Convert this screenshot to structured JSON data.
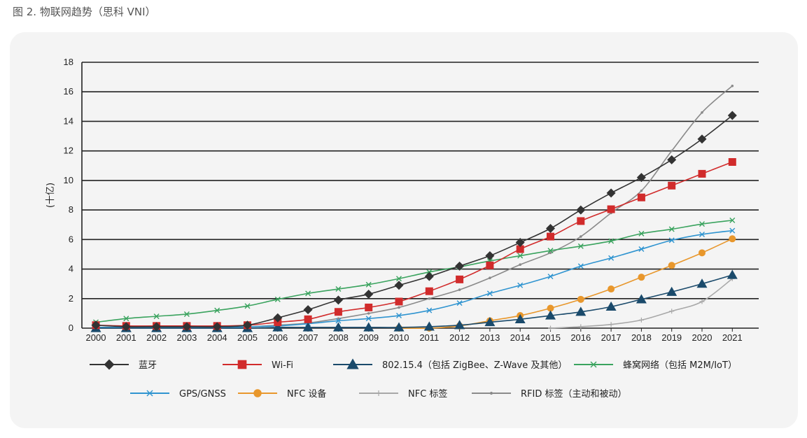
{
  "caption": "图 2. 物联网趋势（思科 VNI）",
  "colors": {
    "panel": "#f4f4f4",
    "grid": "#222222"
  },
  "chart_data": {
    "type": "line",
    "title": "",
    "xlabel": "",
    "ylabel": "(十亿)",
    "ylim": [
      0,
      18
    ],
    "yticks": [
      0,
      2,
      4,
      6,
      8,
      10,
      12,
      14,
      16,
      18
    ],
    "grid": true,
    "legend_position": "bottom",
    "categories": [
      "2000",
      "2001",
      "2002",
      "2003",
      "2004",
      "2005",
      "2006",
      "2007",
      "2008",
      "2009",
      "2010",
      "2011",
      "2012",
      "2013",
      "2014",
      "2015",
      "2016",
      "2017",
      "2018",
      "2019",
      "2020",
      "2021"
    ],
    "series": [
      {
        "name": "蓝牙",
        "color": "#333333",
        "marker": "diamond",
        "values": [
          0.2,
          0.1,
          0.1,
          0.1,
          0.1,
          0.2,
          0.7,
          1.25,
          1.9,
          2.3,
          2.9,
          3.5,
          4.2,
          4.9,
          5.8,
          6.75,
          8.0,
          9.15,
          10.2,
          11.4,
          12.8,
          14.4
        ]
      },
      {
        "name": "Wi-Fi",
        "color": "#d12b2b",
        "marker": "square",
        "values": [
          0.2,
          0.15,
          0.15,
          0.15,
          0.15,
          0.2,
          0.4,
          0.6,
          1.1,
          1.4,
          1.8,
          2.5,
          3.3,
          4.25,
          5.35,
          6.2,
          7.25,
          8.05,
          8.85,
          9.65,
          10.45,
          11.25
        ]
      },
      {
        "name": "802.15.4（包括 ZigBee、Z-Wave 及其他）",
        "color": "#1a4a6b",
        "marker": "triangle",
        "values": [
          0.0,
          0.0,
          0.0,
          0.0,
          0.0,
          0.0,
          0.05,
          0.05,
          0.05,
          0.05,
          0.05,
          0.1,
          0.2,
          0.4,
          0.6,
          0.85,
          1.1,
          1.45,
          1.95,
          2.45,
          3.0,
          3.6
        ]
      },
      {
        "name": "蜂窝网络（包括 M2M/IoT）",
        "color": "#3aa35e",
        "marker": "x",
        "values": [
          0.4,
          0.65,
          0.8,
          0.95,
          1.2,
          1.5,
          1.95,
          2.35,
          2.65,
          2.95,
          3.35,
          3.8,
          4.15,
          4.55,
          4.9,
          5.25,
          5.55,
          5.9,
          6.4,
          6.7,
          7.05,
          7.3
        ]
      },
      {
        "name": "GPS/GNSS",
        "color": "#2f94d0",
        "marker": "x",
        "values": [
          0.05,
          0.05,
          0.05,
          0.05,
          0.05,
          0.1,
          0.15,
          0.3,
          0.5,
          0.65,
          0.85,
          1.2,
          1.7,
          2.35,
          2.9,
          3.5,
          4.2,
          4.75,
          5.35,
          5.95,
          6.35,
          6.6
        ]
      },
      {
        "name": "NFC 设备",
        "color": "#e8972c",
        "marker": "circle",
        "values": [
          null,
          null,
          null,
          null,
          null,
          null,
          null,
          null,
          null,
          null,
          0.0,
          0.0,
          0.15,
          0.5,
          0.85,
          1.35,
          1.95,
          2.65,
          3.45,
          4.25,
          5.1,
          6.05
        ]
      },
      {
        "name": "NFC 标签",
        "color": "#a8a8a8",
        "marker": "plus",
        "values": [
          null,
          null,
          null,
          null,
          null,
          null,
          null,
          null,
          null,
          null,
          null,
          null,
          null,
          null,
          null,
          0.0,
          0.1,
          0.25,
          0.55,
          1.15,
          1.8,
          3.35
        ]
      },
      {
        "name": "RFID 标签（主动和被动）",
        "color": "#8a8a8a",
        "marker": "dot",
        "values": [
          0.05,
          0.05,
          0.05,
          0.05,
          0.05,
          0.1,
          0.2,
          0.35,
          0.65,
          1.0,
          1.4,
          2.0,
          2.6,
          3.4,
          4.3,
          5.1,
          6.2,
          7.8,
          9.3,
          12.0,
          14.6,
          16.4
        ]
      }
    ]
  }
}
